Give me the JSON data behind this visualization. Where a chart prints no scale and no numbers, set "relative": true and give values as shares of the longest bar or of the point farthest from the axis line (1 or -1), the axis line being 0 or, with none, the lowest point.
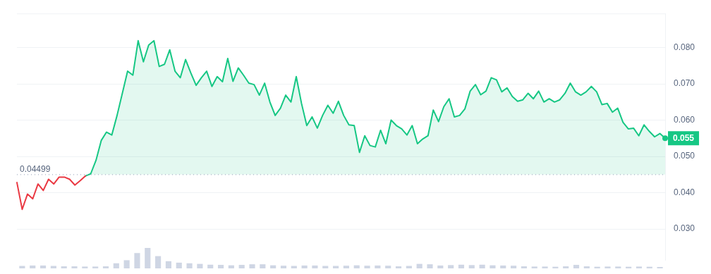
{
  "chart_data": [
    {
      "type": "area",
      "categories": [
        null,
        null,
        null,
        null,
        null,
        null,
        null,
        null,
        null,
        null,
        null,
        null,
        null,
        null,
        null,
        null,
        null,
        null,
        null,
        null,
        null,
        null,
        null,
        null,
        null,
        null,
        null,
        null,
        null,
        null,
        null,
        null,
        null,
        null,
        null,
        null,
        null,
        null,
        null,
        null,
        null,
        null,
        null,
        null,
        null,
        null,
        null,
        null,
        null,
        null,
        null,
        null,
        null,
        null,
        null,
        null,
        null,
        null,
        null,
        null,
        null,
        null,
        null,
        null,
        null,
        null,
        null,
        null,
        null,
        null,
        null,
        null,
        null,
        null,
        null,
        null,
        null,
        null,
        null,
        null,
        null,
        null,
        null,
        null,
        null,
        null,
        null,
        null,
        null,
        null,
        null,
        null,
        null,
        null,
        null,
        null,
        null,
        null,
        null,
        null,
        null,
        null,
        null,
        null,
        null,
        null,
        null,
        null,
        null,
        null,
        null,
        null,
        null,
        null,
        null,
        null,
        null,
        null,
        null,
        null,
        null,
        null,
        null,
        null
      ],
      "series": [
        {
          "type": "line",
          "color": "#ea3943",
          "values": [
            0.0428,
            0.0354,
            0.0396,
            0.0383,
            0.0424,
            0.0406,
            0.0437,
            0.0424,
            0.0443,
            0.0443,
            0.0437,
            0.0421,
            0.0433,
            0.0446,
            null,
            null,
            null,
            null,
            null,
            null,
            null,
            null,
            null,
            null,
            null,
            null,
            null,
            null,
            null,
            null,
            null,
            null,
            null,
            null,
            null,
            null,
            null,
            null,
            null,
            null,
            null,
            null,
            null,
            null,
            null,
            null,
            null,
            null,
            null,
            null,
            null,
            null,
            null,
            null,
            null,
            null,
            null,
            null,
            null,
            null,
            null,
            null,
            null,
            null,
            null,
            null,
            null,
            null,
            null,
            null,
            null,
            null,
            null,
            null,
            null,
            null,
            null,
            null,
            null,
            null,
            null,
            null,
            null,
            null,
            null,
            null,
            null,
            null,
            null,
            null,
            null,
            null,
            null,
            null,
            null,
            null,
            null,
            null,
            null,
            null,
            null,
            null,
            null,
            null,
            null,
            null,
            null,
            null,
            null,
            null,
            null,
            null,
            null,
            null,
            null,
            null,
            null,
            null,
            null,
            null,
            null,
            null,
            null,
            null
          ]
        },
        {
          "type": "area",
          "color": "#16c784",
          "values": [
            null,
            null,
            null,
            null,
            null,
            null,
            null,
            null,
            null,
            null,
            null,
            null,
            null,
            0.0446,
            0.0452,
            0.0489,
            0.0544,
            0.0567,
            0.0559,
            0.0613,
            0.0674,
            0.0735,
            0.0724,
            0.0819,
            0.0761,
            0.0807,
            0.0819,
            0.0748,
            0.0754,
            0.0794,
            0.0735,
            0.0717,
            0.0767,
            0.073,
            0.0696,
            0.0717,
            0.0735,
            0.0693,
            0.072,
            0.0706,
            0.077,
            0.0707,
            0.0744,
            0.0724,
            0.0702,
            0.0698,
            0.0669,
            0.0702,
            0.065,
            0.0613,
            0.0633,
            0.0669,
            0.065,
            0.072,
            0.0646,
            0.0585,
            0.0609,
            0.0578,
            0.0613,
            0.0641,
            0.0619,
            0.0652,
            0.0613,
            0.0587,
            0.0585,
            0.0511,
            0.0557,
            0.053,
            0.0526,
            0.0572,
            0.0535,
            0.06,
            0.0585,
            0.0576,
            0.0559,
            0.0585,
            0.0535,
            0.0548,
            0.0557,
            0.0628,
            0.0596,
            0.0637,
            0.0659,
            0.0609,
            0.0613,
            0.0631,
            0.068,
            0.0698,
            0.067,
            0.068,
            0.0717,
            0.0711,
            0.0678,
            0.0689,
            0.0665,
            0.0652,
            0.0656,
            0.0674,
            0.0659,
            0.068,
            0.065,
            0.0659,
            0.065,
            0.0656,
            0.0674,
            0.0702,
            0.0678,
            0.0669,
            0.0678,
            0.0693,
            0.0678,
            0.0643,
            0.0646,
            0.0622,
            0.0633,
            0.0594,
            0.0576,
            0.0578,
            0.0557,
            0.0587,
            0.0569,
            0.0554,
            0.0563,
            0.055
          ]
        }
      ],
      "ylim": [
        0.0213,
        0.0894
      ],
      "yticks": [
        {
          "value": 0.03,
          "label": "0.030"
        },
        {
          "value": 0.04,
          "label": "0.040"
        },
        {
          "value": 0.05,
          "label": "0.050"
        },
        {
          "value": 0.06,
          "label": "0.060"
        },
        {
          "value": 0.07,
          "label": "0.070"
        },
        {
          "value": 0.08,
          "label": "0.080"
        }
      ],
      "tick_labels": "y",
      "grid": "y",
      "legend": false,
      "marker": "none",
      "ref_lines": [
        {
          "axis": "y",
          "value": 0.04499,
          "label": "0.04499",
          "line_style": "dotted",
          "color": "#a6b0c3"
        }
      ],
      "annotations": [
        "0.055"
      ]
    },
    {
      "type": "bar",
      "relative": true,
      "color": "#cfd6e4",
      "legend": false,
      "categories": [
        null,
        null,
        null,
        null,
        null,
        null,
        null,
        null,
        null,
        null,
        null,
        null,
        null,
        null,
        null,
        null,
        null,
        null,
        null,
        null,
        null,
        null,
        null,
        null,
        null,
        null,
        null,
        null,
        null,
        null,
        null,
        null,
        null,
        null,
        null,
        null,
        null,
        null,
        null,
        null,
        null,
        null,
        null,
        null,
        null,
        null,
        null,
        null,
        null,
        null,
        null,
        null,
        null,
        null,
        null,
        null,
        null,
        null,
        null,
        null,
        null,
        null
      ],
      "values": [
        0.12,
        0.14,
        0.14,
        0.12,
        0.1,
        0.1,
        0.09,
        0.09,
        0.1,
        0.25,
        0.4,
        0.75,
        1,
        0.6,
        0.35,
        0.28,
        0.25,
        0.22,
        0.18,
        0.17,
        0.15,
        0.17,
        0.2,
        0.2,
        0.15,
        0.13,
        0.12,
        0.14,
        0.14,
        0.12,
        0.12,
        0.13,
        0.15,
        0.13,
        0.14,
        0.13,
        0.1,
        0.12,
        0.22,
        0.2,
        0.14,
        0.16,
        0.18,
        0.16,
        0.18,
        0.15,
        0.14,
        0.13,
        0.1,
        0.09,
        0.09,
        0.08,
        0.1,
        0.17,
        0.1,
        0.08,
        0.09,
        0.09,
        0.08,
        0.09,
        0.08,
        0.07
      ]
    }
  ]
}
